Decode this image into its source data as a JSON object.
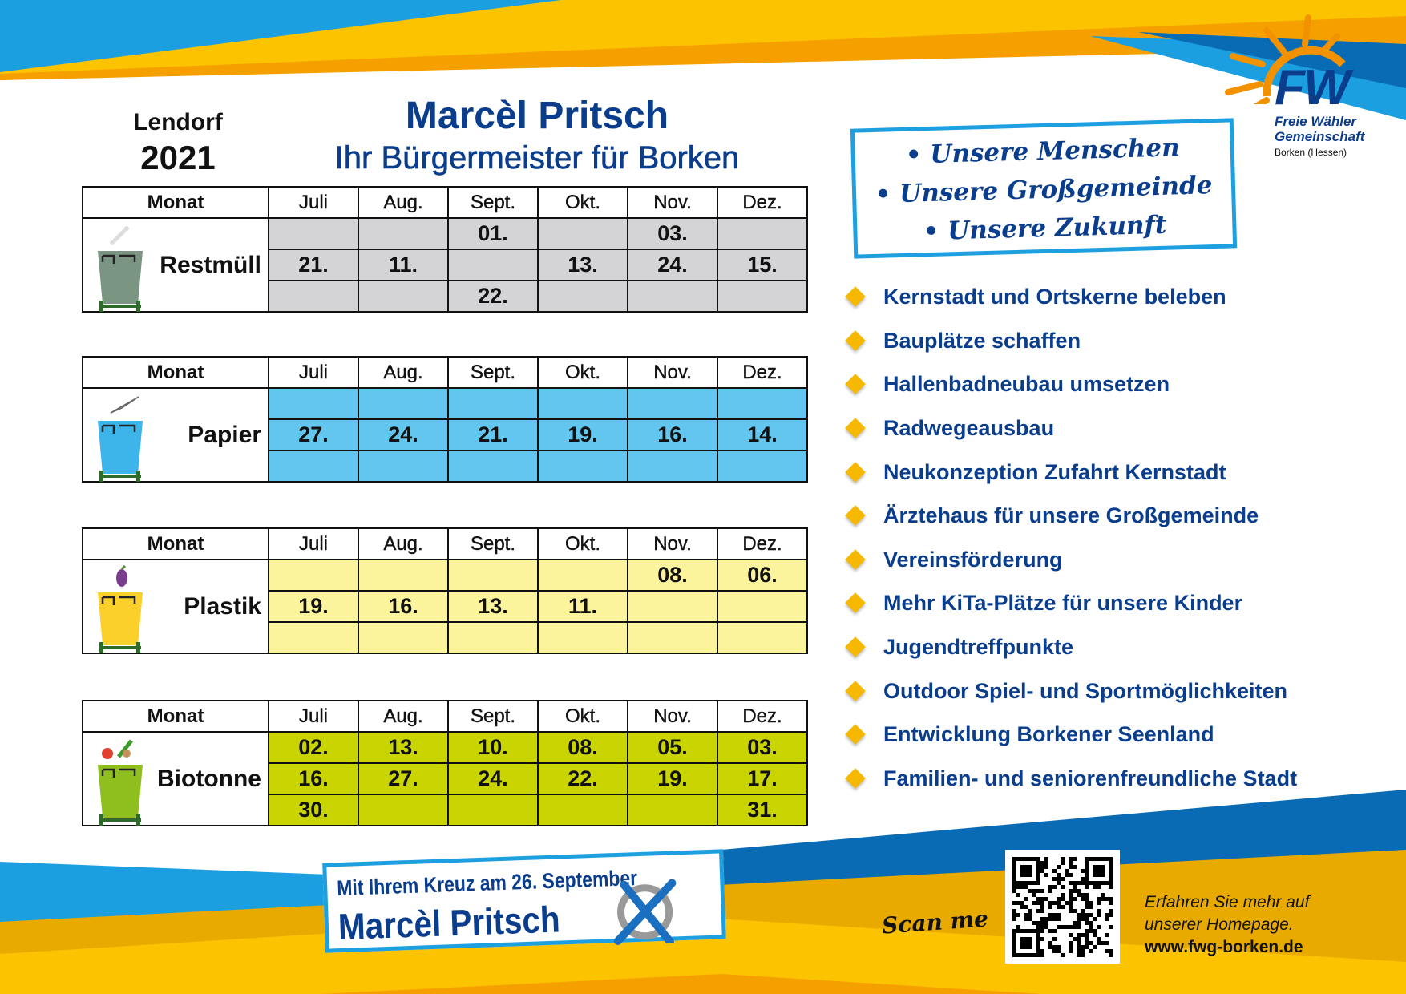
{
  "header": {
    "place": "Lendorf",
    "year": "2021",
    "candidate": "Marcèl Pritsch",
    "subtitle": "Ihr Bürgermeister für Borken"
  },
  "logo": {
    "letters": "FW",
    "line1": "Freie Wähler",
    "line2": "Gemeinschaft",
    "line3": "Borken (Hessen)",
    "sun_color": "#f39200",
    "text_color": "#0a3d8c"
  },
  "months": [
    "Juli",
    "Aug.",
    "Sept.",
    "Okt.",
    "Nov.",
    "Dez."
  ],
  "month_header": "Monat",
  "tables": [
    {
      "label": "Restmüll",
      "icon": "bone-icon",
      "cell_color": "#d4d4d6",
      "bin_color": "#7b9583",
      "rows": [
        [
          "",
          "",
          "01.",
          "",
          "03.",
          ""
        ],
        [
          "21.",
          "11.",
          "",
          "13.",
          "24.",
          "15."
        ],
        [
          "",
          "",
          "22.",
          "",
          "",
          ""
        ]
      ]
    },
    {
      "label": "Papier",
      "icon": "paper-plane-icon",
      "cell_color": "#62c6ef",
      "bin_color": "#3db4ea",
      "rows": [
        [
          "",
          "",
          "",
          "",
          "",
          ""
        ],
        [
          "27.",
          "24.",
          "21.",
          "19.",
          "16.",
          "14."
        ],
        [
          "",
          "",
          "",
          "",
          "",
          ""
        ]
      ]
    },
    {
      "label": "Plastik",
      "icon": "eggplant-icon",
      "cell_color": "#fbf49c",
      "bin_color": "#fbd02b",
      "rows": [
        [
          "",
          "",
          "",
          "",
          "08.",
          "06."
        ],
        [
          "19.",
          "16.",
          "13.",
          "11.",
          "",
          ""
        ],
        [
          "",
          "",
          "",
          "",
          "",
          ""
        ]
      ]
    },
    {
      "label": "Biotonne",
      "icon": "vegetables-icon",
      "cell_color": "#c9d400",
      "bin_color": "#8fbe1f",
      "rows": [
        [
          "02.",
          "13.",
          "10.",
          "08.",
          "05.",
          "03."
        ],
        [
          "16.",
          "27.",
          "24.",
          "22.",
          "19.",
          "17."
        ],
        [
          "30.",
          "",
          "",
          "",
          "",
          "31."
        ]
      ]
    }
  ],
  "motto": [
    "• Unsere Menschen",
    "• Unsere Großgemeinde",
    "• Unsere Zukunft"
  ],
  "goals": [
    "Kernstadt und Ortskerne beleben",
    "Bauplätze schaffen",
    "Hallenbadneubau umsetzen",
    "Radwegeausbau",
    "Neukonzeption Zufahrt Kernstadt",
    "Ärztehaus für unsere Großgemeinde",
    "Vereinsförderung",
    "Mehr KiTa-Plätze für unsere Kinder",
    "Jugendtreffpunkte",
    "Outdoor Spiel- und Sportmöglichkeiten",
    "Entwicklung Borkener Seenland",
    "Familien- und seniorenfreundliche Stadt"
  ],
  "vote": {
    "line1": "Mit Ihrem Kreuz am 26. September",
    "line2": "Marcèl Pritsch"
  },
  "footer": {
    "scan": "Scan me",
    "more1": "Erfahren Sie mehr auf",
    "more2": "unserer Homepage.",
    "url": "www.fwg-borken.de"
  },
  "colors": {
    "brand_blue": "#0a3d8c",
    "sky_blue": "#1ea0e0",
    "orange": "#f6a800",
    "yellow": "#fcc300"
  }
}
